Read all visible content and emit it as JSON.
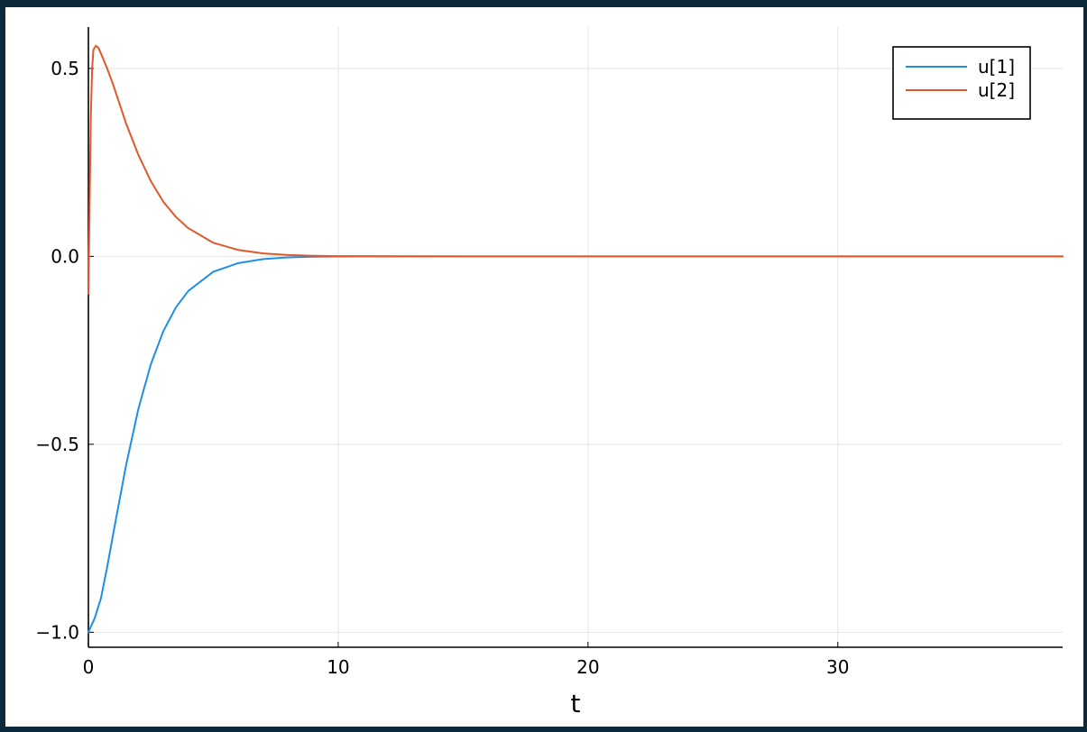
{
  "chart_data": {
    "type": "line",
    "title": "",
    "xlabel": "t",
    "ylabel": "",
    "xlim": [
      0,
      39
    ],
    "ylim": [
      -1.04,
      0.61
    ],
    "grid": true,
    "legend_position": "top-right",
    "x_ticks": [
      {
        "value": 0,
        "label": "0"
      },
      {
        "value": 10,
        "label": "10"
      },
      {
        "value": 20,
        "label": "20"
      },
      {
        "value": 30,
        "label": "30"
      }
    ],
    "y_ticks": [
      {
        "value": 0.5,
        "label": "0.5"
      },
      {
        "value": 0.0,
        "label": "0.0"
      },
      {
        "value": -0.5,
        "label": "−0.5"
      },
      {
        "value": -1.0,
        "label": "−1.0"
      }
    ],
    "series": [
      {
        "name": "u[1]",
        "color": "#1f8fe6",
        "x": [
          0,
          0.25,
          0.5,
          0.75,
          1,
          1.5,
          2,
          2.5,
          3,
          3.5,
          4,
          5,
          6,
          7,
          8,
          9,
          10,
          11,
          12,
          13,
          15,
          20,
          25,
          30,
          35,
          39
        ],
        "y": [
          -1.0,
          -0.963,
          -0.91,
          -0.827,
          -0.736,
          -0.558,
          -0.406,
          -0.287,
          -0.199,
          -0.136,
          -0.092,
          -0.041,
          -0.018,
          -0.0073,
          -0.0029,
          -0.0011,
          -0.0004,
          -0.0002,
          -0.0001,
          0,
          0,
          0,
          0,
          0,
          0,
          0
        ]
      },
      {
        "name": "u[2]",
        "color": "#e0582c",
        "x": [
          0,
          0.05,
          0.1,
          0.15,
          0.2,
          0.3,
          0.4,
          0.5,
          0.75,
          1,
          1.5,
          2,
          2.5,
          3,
          3.5,
          4,
          5,
          6,
          7,
          8,
          9,
          10,
          12,
          15,
          20,
          25,
          30,
          35,
          39
        ],
        "y": [
          -0.1,
          0.15,
          0.38,
          0.5,
          0.55,
          0.56,
          0.555,
          0.54,
          0.5,
          0.455,
          0.355,
          0.27,
          0.2,
          0.145,
          0.105,
          0.075,
          0.036,
          0.017,
          0.0078,
          0.0035,
          0.0015,
          0.0006,
          0.0001,
          0,
          0,
          0,
          0,
          0,
          0
        ]
      }
    ]
  }
}
